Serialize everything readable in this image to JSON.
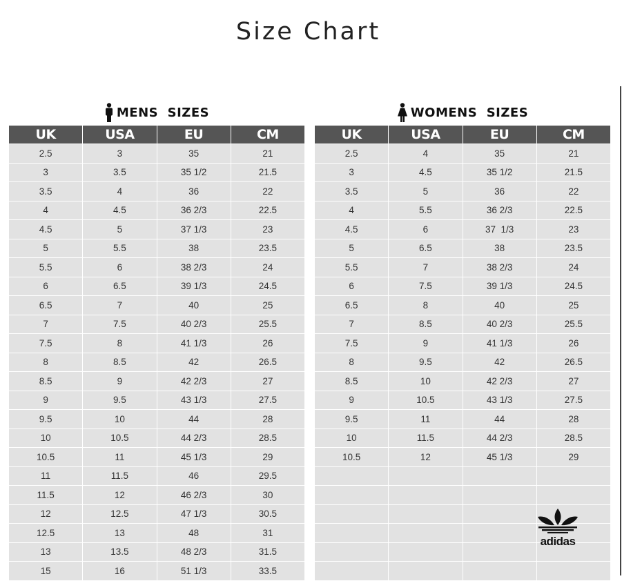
{
  "title": "Size Chart",
  "mens": {
    "heading": "MENS  SIZES",
    "icon": "man-icon",
    "columns": [
      "UK",
      "USA",
      "EU",
      "CM"
    ],
    "rows": [
      [
        "2.5",
        "3",
        "35",
        "21"
      ],
      [
        "3",
        "3.5",
        "35 1/2",
        "21.5"
      ],
      [
        "3.5",
        "4",
        "36",
        "22"
      ],
      [
        "4",
        "4.5",
        "36 2/3",
        "22.5"
      ],
      [
        "4.5",
        "5",
        "37 1/3",
        "23"
      ],
      [
        "5",
        "5.5",
        "38",
        "23.5"
      ],
      [
        "5.5",
        "6",
        "38 2/3",
        "24"
      ],
      [
        "6",
        "6.5",
        "39 1/3",
        "24.5"
      ],
      [
        "6.5",
        "7",
        "40",
        "25"
      ],
      [
        "7",
        "7.5",
        "40 2/3",
        "25.5"
      ],
      [
        "7.5",
        "8",
        "41 1/3",
        "26"
      ],
      [
        "8",
        "8.5",
        "42",
        "26.5"
      ],
      [
        "8.5",
        "9",
        "42 2/3",
        "27"
      ],
      [
        "9",
        "9.5",
        "43 1/3",
        "27.5"
      ],
      [
        "9.5",
        "10",
        "44",
        "28"
      ],
      [
        "10",
        "10.5",
        "44 2/3",
        "28.5"
      ],
      [
        "10.5",
        "11",
        "45 1/3",
        "29"
      ],
      [
        "11",
        "11.5",
        "46",
        "29.5"
      ],
      [
        "11.5",
        "12",
        "46 2/3",
        "30"
      ],
      [
        "12",
        "12.5",
        "47 1/3",
        "30.5"
      ],
      [
        "12.5",
        "13",
        "48",
        "31"
      ],
      [
        "13",
        "13.5",
        "48 2/3",
        "31.5"
      ],
      [
        "15",
        "16",
        "51 1/3",
        "33.5"
      ]
    ]
  },
  "womens": {
    "heading": "WOMENS  SIZES",
    "icon": "woman-icon",
    "columns": [
      "UK",
      "USA",
      "EU",
      "CM"
    ],
    "rows": [
      [
        "2.5",
        "4",
        "35",
        "21"
      ],
      [
        "3",
        "4.5",
        "35 1/2",
        "21.5"
      ],
      [
        "3.5",
        "5",
        "36",
        "22"
      ],
      [
        "4",
        "5.5",
        "36 2/3",
        "22.5"
      ],
      [
        "4.5",
        "6",
        "37  1/3",
        "23"
      ],
      [
        "5",
        "6.5",
        "38",
        "23.5"
      ],
      [
        "5.5",
        "7",
        "38 2/3",
        "24"
      ],
      [
        "6",
        "7.5",
        "39 1/3",
        "24.5"
      ],
      [
        "6.5",
        "8",
        "40",
        "25"
      ],
      [
        "7",
        "8.5",
        "40 2/3",
        "25.5"
      ],
      [
        "7.5",
        "9",
        "41 1/3",
        "26"
      ],
      [
        "8",
        "9.5",
        "42",
        "26.5"
      ],
      [
        "8.5",
        "10",
        "42 2/3",
        "27"
      ],
      [
        "9",
        "10.5",
        "43 1/3",
        "27.5"
      ],
      [
        "9.5",
        "11",
        "44",
        "28"
      ],
      [
        "10",
        "11.5",
        "44 2/3",
        "28.5"
      ],
      [
        "10.5",
        "12",
        "45 1/3",
        "29"
      ],
      [
        "",
        "",
        "",
        ""
      ],
      [
        "",
        "",
        "",
        ""
      ],
      [
        "",
        "",
        "",
        ""
      ],
      [
        "",
        "",
        "",
        ""
      ],
      [
        "",
        "",
        "",
        ""
      ],
      [
        "",
        "",
        "",
        ""
      ]
    ]
  },
  "logo": {
    "brand": "adidas",
    "icon": "adidas-trefoil-icon"
  },
  "colors": {
    "header_bg": "#555555",
    "cell_bg": "#e2e2e2"
  }
}
